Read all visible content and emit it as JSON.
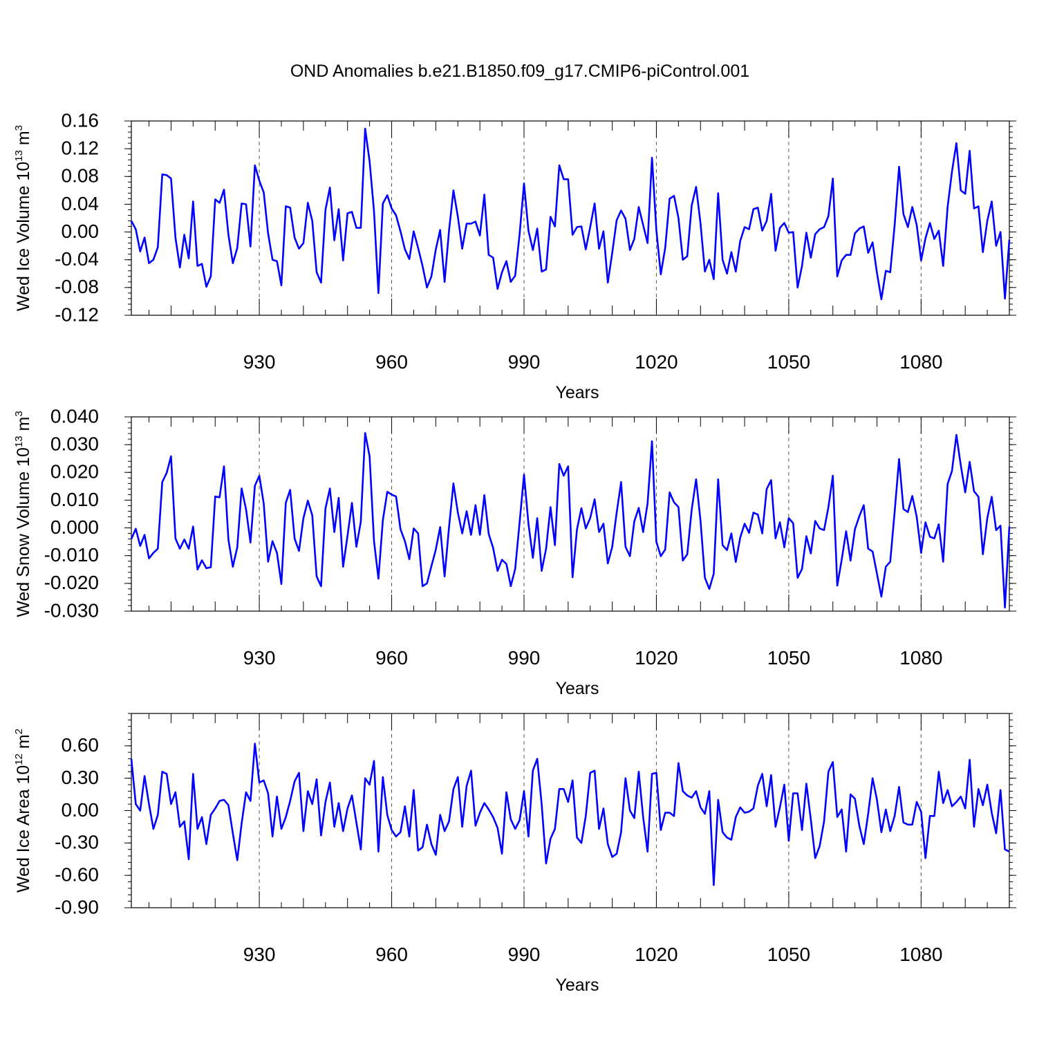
{
  "page_title": "OND Anomalies b.e21.B1850.f09_g17.CMIP6-piControl.001",
  "chart_data": [
    {
      "type": "line",
      "title": "OND Anomalies b.e21.B1850.f09_g17.CMIP6-piControl.001",
      "xlabel": "Years",
      "ylabel": {
        "base": "Wed Ice Volume 10",
        "sup": "13",
        "unit": " m",
        "unit_sup": "3"
      },
      "xlim": [
        901,
        1100
      ],
      "ylim": [
        -0.12,
        0.16
      ],
      "xticks": [
        930,
        960,
        990,
        1020,
        1050,
        1080
      ],
      "yticks": [
        -0.12,
        -0.08,
        -0.04,
        0.0,
        0.04,
        0.08,
        0.12,
        0.16
      ],
      "ytick_labels": [
        "-0.12",
        "-0.08",
        "-0.04",
        "0.00",
        "0.04",
        "0.08",
        "0.12",
        "0.16"
      ],
      "grid": "vertical dashed at x ticks",
      "series": [
        {
          "name": "Wed Ice Volume",
          "color": "#0000ff",
          "x_start": 901,
          "values": [
            0.016,
            0.004,
            -0.028,
            -0.008,
            -0.045,
            -0.04,
            -0.022,
            0.083,
            0.082,
            0.077,
            -0.008,
            -0.051,
            -0.004,
            -0.038,
            0.044,
            -0.049,
            -0.046,
            -0.079,
            -0.064,
            0.047,
            0.042,
            0.061,
            -0.004,
            -0.045,
            -0.023,
            0.041,
            0.04,
            -0.021,
            0.096,
            0.074,
            0.057,
            -0.002,
            -0.04,
            -0.042,
            -0.077,
            0.037,
            0.035,
            -0.008,
            -0.024,
            -0.016,
            0.042,
            0.016,
            -0.058,
            -0.073,
            0.032,
            0.064,
            -0.012,
            0.033,
            -0.041,
            0.027,
            0.029,
            0.006,
            0.006,
            0.149,
            0.102,
            0.03,
            -0.088,
            0.041,
            0.053,
            0.034,
            0.024,
            0.001,
            -0.025,
            -0.039,
            0.001,
            -0.023,
            -0.049,
            -0.08,
            -0.064,
            -0.025,
            0.003,
            -0.072,
            0.002,
            0.06,
            0.022,
            -0.024,
            0.012,
            0.012,
            0.015,
            -0.005,
            0.054,
            -0.033,
            -0.037,
            -0.082,
            -0.058,
            -0.042,
            -0.072,
            -0.063,
            -0.003,
            0.07,
            0.002,
            -0.026,
            0.005,
            -0.057,
            -0.054,
            0.022,
            0.008,
            0.096,
            0.076,
            0.076,
            -0.004,
            0.007,
            0.008,
            -0.025,
            0.007,
            0.041,
            -0.024,
            0.001,
            -0.073,
            -0.03,
            0.017,
            0.031,
            0.019,
            -0.026,
            -0.01,
            0.036,
            0.01,
            -0.016,
            0.107,
            0.003,
            -0.061,
            -0.023,
            0.048,
            0.052,
            0.02,
            -0.04,
            -0.035,
            0.038,
            0.065,
            0.012,
            -0.057,
            -0.04,
            -0.068,
            0.056,
            -0.04,
            -0.06,
            -0.029,
            -0.057,
            -0.013,
            0.007,
            0.004,
            0.033,
            0.035,
            0.002,
            0.016,
            0.055,
            -0.027,
            0.006,
            0.013,
            -0.001,
            0.0,
            -0.08,
            -0.049,
            -0.001,
            -0.037,
            -0.003,
            0.004,
            0.007,
            0.023,
            0.077,
            -0.064,
            -0.041,
            -0.033,
            -0.033,
            -0.002,
            0.005,
            0.008,
            -0.03,
            -0.015,
            -0.059,
            -0.097,
            -0.056,
            -0.058,
            0.01,
            0.094,
            0.026,
            0.007,
            0.036,
            0.01,
            -0.041,
            -0.009,
            0.013,
            -0.01,
            0.002,
            -0.049,
            0.036,
            0.087,
            0.128,
            0.06,
            0.055,
            0.117,
            0.034,
            0.037,
            -0.029,
            0.016,
            0.044,
            -0.02,
            0.0,
            -0.096,
            -0.011
          ]
        }
      ]
    },
    {
      "type": "line",
      "xlabel": "Years",
      "ylabel": {
        "base": "Wed Snow Volume 10",
        "sup": "13",
        "unit": " m",
        "unit_sup": "3"
      },
      "xlim": [
        901,
        1100
      ],
      "ylim": [
        -0.03,
        0.04
      ],
      "xticks": [
        930,
        960,
        990,
        1020,
        1050,
        1080
      ],
      "yticks": [
        -0.03,
        -0.02,
        -0.01,
        0.0,
        0.01,
        0.02,
        0.03,
        0.04
      ],
      "ytick_labels": [
        "-0.030",
        "-0.020",
        "-0.010",
        "0.000",
        "0.010",
        "0.020",
        "0.030",
        "0.040"
      ],
      "grid": "vertical dashed at x ticks",
      "series": [
        {
          "name": "Wed Snow Volume",
          "color": "#0000ff",
          "x_start": 901,
          "values": [
            -0.004,
            -0.0003,
            -0.0065,
            -0.0025,
            -0.011,
            -0.009,
            -0.0075,
            0.0165,
            0.0198,
            0.0258,
            -0.0038,
            -0.0075,
            -0.0042,
            -0.0075,
            0.0005,
            -0.015,
            -0.0117,
            -0.0145,
            -0.0142,
            0.0113,
            0.011,
            0.0222,
            -0.0042,
            -0.014,
            -0.007,
            0.0142,
            0.0067,
            -0.0053,
            0.0152,
            0.0188,
            0.0087,
            -0.0122,
            -0.0048,
            -0.009,
            -0.0202,
            0.009,
            0.0137,
            -0.0038,
            -0.0083,
            0.0035,
            0.0098,
            0.0045,
            -0.0175,
            -0.021,
            0.007,
            0.0142,
            -0.0015,
            0.0108,
            -0.014,
            -0.0028,
            0.009,
            -0.0068,
            0.0022,
            0.0342,
            0.0258,
            -0.0048,
            -0.0183,
            0.0028,
            0.013,
            0.012,
            0.0113,
            -0.0005,
            -0.0048,
            -0.0113,
            -0.0002,
            -0.002,
            -0.021,
            -0.02,
            -0.0138,
            -0.0078,
            0.0003,
            -0.0175,
            0.0002,
            0.016,
            0.0055,
            -0.002,
            0.006,
            -0.0025,
            0.0082,
            -0.0025,
            0.0118,
            -0.0022,
            -0.0072,
            -0.0155,
            -0.0115,
            -0.013,
            -0.021,
            -0.0148,
            0.002,
            0.0192,
            0.0015,
            -0.0108,
            0.0035,
            -0.0155,
            -0.0075,
            0.0075,
            -0.0062,
            0.023,
            0.0188,
            0.0222,
            -0.0178,
            -0.0005,
            0.0071,
            -0.0002,
            0.0035,
            0.0103,
            -0.0015,
            0.0015,
            -0.0128,
            -0.0068,
            0.0055,
            0.0165,
            -0.0068,
            -0.0102,
            0.0023,
            0.0072,
            -0.0015,
            0.0088,
            0.0312,
            -0.005,
            -0.0102,
            -0.0078,
            0.0128,
            0.0092,
            0.0075,
            -0.0118,
            -0.0095,
            0.0065,
            0.0175,
            0.0025,
            -0.018,
            -0.022,
            -0.0165,
            0.0175,
            -0.0062,
            -0.008,
            -0.002,
            -0.0123,
            -0.0035,
            0.0015,
            -0.0018,
            0.0055,
            0.0048,
            -0.002,
            0.014,
            0.0172,
            -0.0038,
            0.002,
            -0.007,
            0.0035,
            0.0017,
            -0.018,
            -0.0148,
            -0.003,
            -0.0092,
            0.0025,
            -0.0002,
            -0.0008,
            0.0075,
            0.0188,
            -0.0208,
            -0.0115,
            -0.0012,
            -0.0118,
            -0.0005,
            0.0042,
            0.0082,
            -0.0075,
            -0.0085,
            -0.0165,
            -0.0248,
            -0.014,
            -0.0122,
            0.0058,
            0.0248,
            0.0068,
            0.0057,
            0.0115,
            0.004,
            -0.009,
            0.002,
            -0.0032,
            -0.0038,
            0.0013,
            -0.0122,
            0.0158,
            0.0205,
            0.0335,
            0.0225,
            0.0128,
            0.0238,
            0.0132,
            0.0112,
            -0.0095,
            0.0035,
            0.0112,
            -0.0008,
            0.0008,
            -0.0287,
            0.0005
          ]
        }
      ]
    },
    {
      "type": "line",
      "xlabel": "Years",
      "ylabel": {
        "base": "Wed Ice Area 10",
        "sup": "12",
        "unit": " m",
        "unit_sup": "2"
      },
      "xlim": [
        901,
        1100
      ],
      "ylim": [
        -0.9,
        0.9
      ],
      "xticks": [
        930,
        960,
        990,
        1020,
        1050,
        1080
      ],
      "yticks": [
        -0.9,
        -0.6,
        -0.3,
        0.0,
        0.3,
        0.6
      ],
      "ytick_labels": [
        "-0.90",
        "-0.60",
        "-0.30",
        "0.00",
        "0.30",
        "0.60"
      ],
      "grid": "vertical dashed at x ticks",
      "series": [
        {
          "name": "Wed Ice Area",
          "color": "#0000ff",
          "x_start": 901,
          "values": [
            0.48,
            0.06,
            0.0,
            0.32,
            0.06,
            -0.17,
            -0.04,
            0.36,
            0.34,
            0.06,
            0.17,
            -0.15,
            -0.1,
            -0.45,
            0.34,
            -0.17,
            -0.06,
            -0.31,
            -0.04,
            0.02,
            0.09,
            0.1,
            0.05,
            -0.21,
            -0.46,
            -0.12,
            0.17,
            0.09,
            0.62,
            0.26,
            0.28,
            0.16,
            -0.24,
            0.13,
            -0.17,
            -0.06,
            0.09,
            0.27,
            0.35,
            -0.19,
            0.18,
            0.06,
            0.29,
            -0.23,
            0.08,
            0.26,
            -0.15,
            0.07,
            -0.19,
            0.02,
            0.14,
            -0.11,
            -0.36,
            0.3,
            0.24,
            0.46,
            -0.38,
            0.31,
            -0.04,
            -0.18,
            -0.24,
            -0.2,
            0.04,
            -0.24,
            0.19,
            -0.37,
            -0.34,
            -0.13,
            -0.31,
            -0.41,
            -0.04,
            -0.19,
            -0.1,
            0.2,
            0.31,
            -0.15,
            0.23,
            0.37,
            -0.14,
            -0.02,
            0.07,
            0.01,
            -0.06,
            -0.16,
            -0.4,
            0.17,
            -0.08,
            -0.17,
            -0.09,
            0.18,
            -0.24,
            0.37,
            0.48,
            0.06,
            -0.49,
            -0.26,
            -0.17,
            0.2,
            0.2,
            0.08,
            0.28,
            -0.25,
            -0.3,
            -0.05,
            0.35,
            0.37,
            -0.17,
            0.02,
            -0.31,
            -0.43,
            -0.4,
            -0.2,
            0.3,
            0.0,
            -0.07,
            0.36,
            -0.06,
            -0.38,
            0.34,
            0.35,
            -0.18,
            -0.02,
            -0.02,
            -0.05,
            0.44,
            0.18,
            0.14,
            0.12,
            0.18,
            0.03,
            -0.03,
            0.18,
            -0.69,
            0.1,
            -0.2,
            -0.25,
            -0.27,
            -0.06,
            0.03,
            -0.02,
            -0.01,
            0.02,
            0.23,
            0.34,
            0.04,
            0.33,
            -0.15,
            0.03,
            0.24,
            -0.28,
            0.16,
            0.16,
            -0.18,
            0.25,
            -0.08,
            -0.44,
            -0.33,
            -0.1,
            0.36,
            0.45,
            -0.06,
            0.01,
            -0.38,
            0.15,
            0.11,
            -0.14,
            -0.31,
            -0.03,
            0.3,
            0.1,
            -0.2,
            0.01,
            -0.19,
            -0.05,
            0.22,
            -0.11,
            -0.13,
            -0.13,
            0.08,
            -0.01,
            -0.44,
            -0.05,
            -0.05,
            0.36,
            0.07,
            0.19,
            0.04,
            0.08,
            0.13,
            0.02,
            0.47,
            -0.15,
            0.2,
            0.05,
            0.24,
            -0.02,
            -0.21,
            0.19,
            -0.36,
            -0.38
          ]
        }
      ]
    }
  ]
}
